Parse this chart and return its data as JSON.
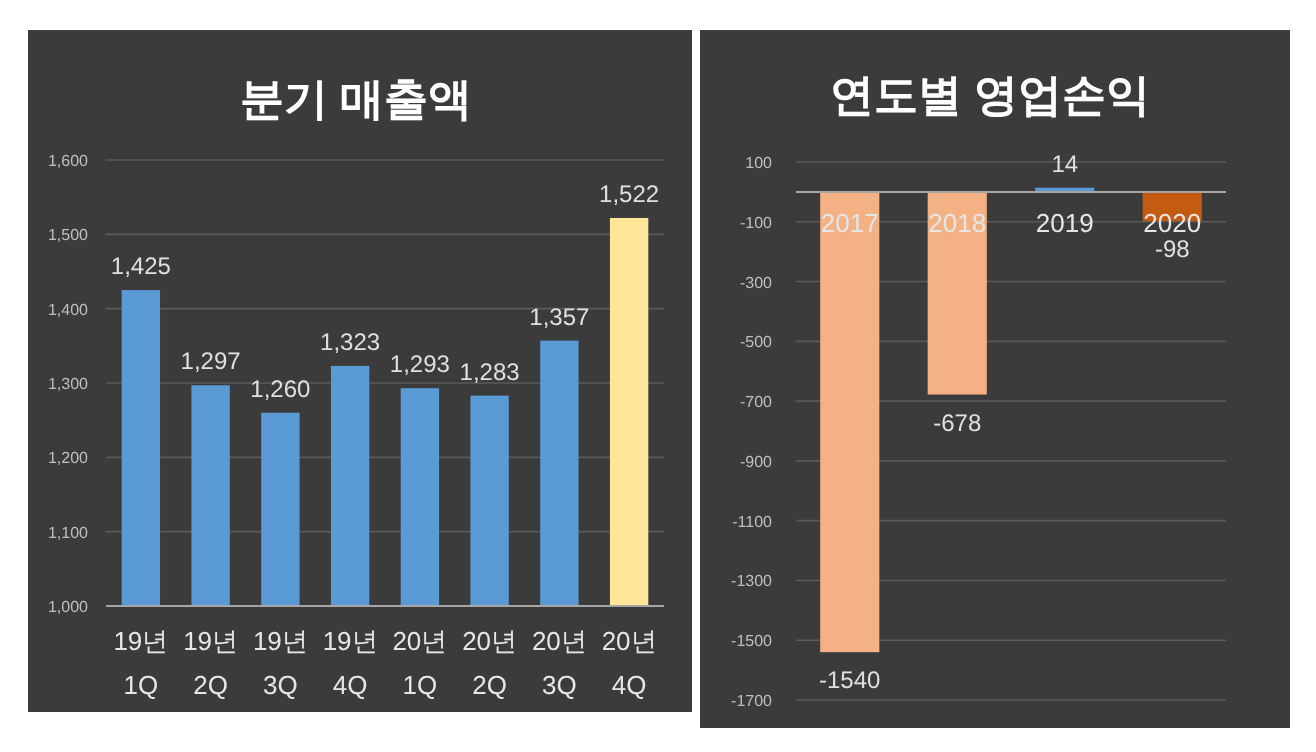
{
  "chart_data": [
    {
      "type": "bar",
      "title": "분기 매출액",
      "categories": [
        "19년 1Q",
        "19년 2Q",
        "19년 3Q",
        "19년 4Q",
        "20년 1Q",
        "20년 2Q",
        "20년 3Q",
        "20년 4Q"
      ],
      "values": [
        1425,
        1297,
        1260,
        1323,
        1293,
        1283,
        1357,
        1522
      ],
      "value_labels": [
        "1,425",
        "1,297",
        "1,260",
        "1,323",
        "1,293",
        "1,283",
        "1,357",
        "1,522"
      ],
      "colors": [
        "#5b9bd5",
        "#5b9bd5",
        "#5b9bd5",
        "#5b9bd5",
        "#5b9bd5",
        "#5b9bd5",
        "#5b9bd5",
        "#ffe699"
      ],
      "ylim": [
        1000,
        1600
      ],
      "yticks": [
        {
          "value": 1000,
          "label": "1,000"
        },
        {
          "value": 1100,
          "label": "1,100"
        },
        {
          "value": 1200,
          "label": "1,200"
        },
        {
          "value": 1300,
          "label": "1,300"
        },
        {
          "value": 1400,
          "label": "1,400"
        },
        {
          "value": 1500,
          "label": "1,500"
        },
        {
          "value": 1600,
          "label": "1,600"
        }
      ],
      "grid": "y"
    },
    {
      "type": "bar",
      "title": "연도별 영업손익",
      "categories": [
        "2017",
        "2018",
        "2019",
        "2020"
      ],
      "values": [
        -1540,
        -678,
        14,
        -98
      ],
      "colors": [
        "#f4b183",
        "#f4b183",
        "#5b9bd5",
        "#c55a11"
      ],
      "data_labels": true,
      "ylim": [
        -1700,
        100
      ],
      "yticks": [
        100,
        -100,
        -300,
        -500,
        -700,
        -900,
        -1100,
        -1300,
        -1500,
        -1700
      ],
      "grid": "y"
    }
  ]
}
